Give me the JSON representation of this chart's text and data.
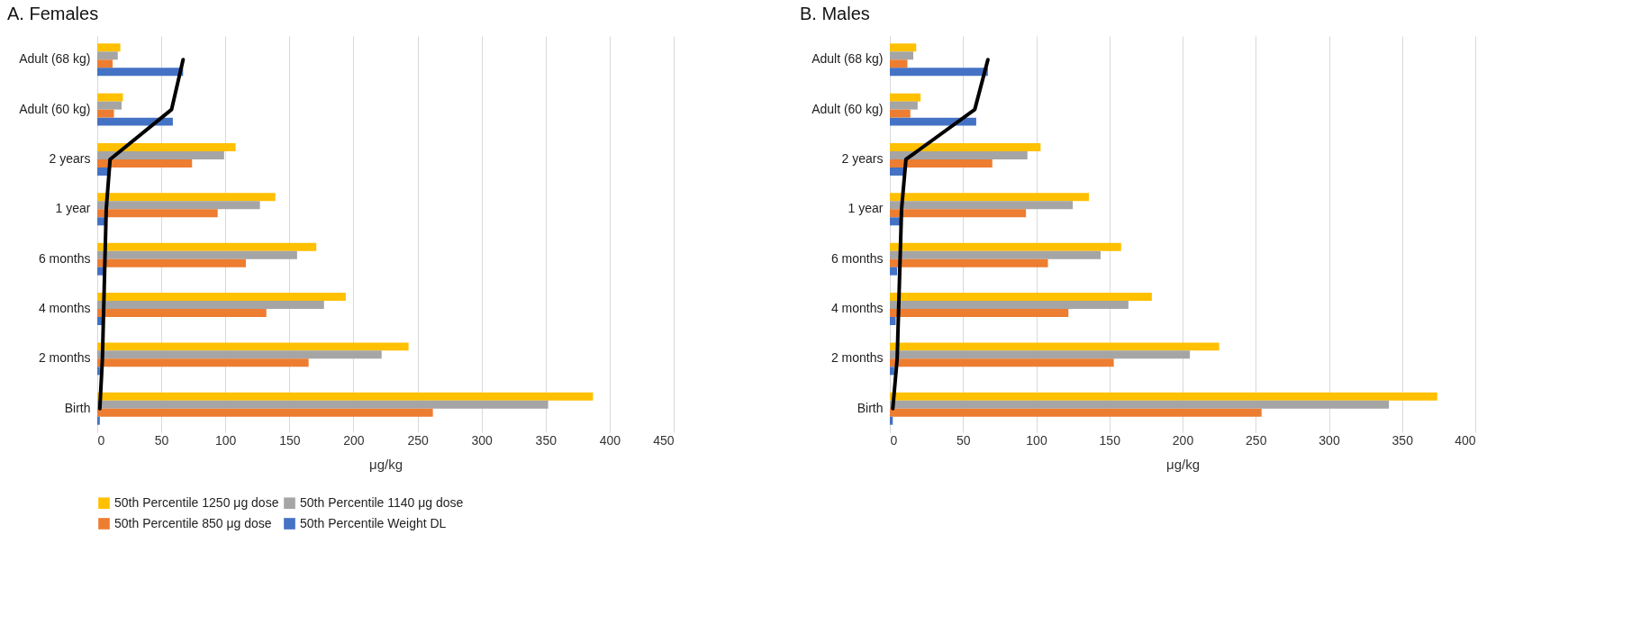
{
  "chart_data": [
    {
      "type": "bar",
      "orientation": "horizontal",
      "title": "A. Females",
      "xlabel": "μg/kg",
      "categories": [
        "Adult (68 kg)",
        "Adult (60 kg)",
        "2 years",
        "1 year",
        "6 months",
        "4 months",
        "2 months",
        "Birth"
      ],
      "xlim": [
        0,
        450
      ],
      "xticks": [
        0,
        50,
        100,
        150,
        200,
        250,
        300,
        350,
        400,
        450
      ],
      "grid": "x",
      "legend": "bottom",
      "series": [
        {
          "name": "50th Percentile 1250 μg dose",
          "color": "#ffc000",
          "values": [
            18,
            20,
            108,
            139,
            171,
            194,
            243,
            387
          ]
        },
        {
          "name": "50th Percentile 1140 μg dose",
          "color": "#a5a5a5",
          "values": [
            16,
            19,
            99,
            127,
            156,
            177,
            222,
            352
          ]
        },
        {
          "name": "50th Percentile 850 μg dose",
          "color": "#ed7d31",
          "values": [
            12,
            13,
            74,
            94,
            116,
            132,
            165,
            262
          ]
        },
        {
          "name": "50th Percentile Weight DL",
          "color": "#4472c4",
          "values": [
            67,
            59,
            9,
            6,
            5,
            4,
            2,
            2
          ]
        },
        {
          "type": "line",
          "color": "#000000",
          "values": [
            67,
            58,
            10,
            7,
            6,
            5,
            4,
            2
          ]
        }
      ]
    },
    {
      "type": "bar",
      "orientation": "horizontal",
      "title": "B. Males",
      "xlabel": "μg/kg",
      "categories": [
        "Adult (68 kg)",
        "Adult (60 kg)",
        "2 years",
        "1 year",
        "6 months",
        "4 months",
        "2 months",
        "Birth"
      ],
      "xlim": [
        0,
        400
      ],
      "xticks": [
        0,
        50,
        100,
        150,
        200,
        250,
        300,
        350,
        400
      ],
      "grid": "x",
      "series": [
        {
          "name": "50th Percentile 1250 μg dose",
          "color": "#ffc000",
          "values": [
            18,
            21,
            103,
            136,
            158,
            179,
            225,
            374
          ]
        },
        {
          "name": "50th Percentile 1140 μg dose",
          "color": "#a5a5a5",
          "values": [
            16,
            19,
            94,
            125,
            144,
            163,
            205,
            341
          ]
        },
        {
          "name": "50th Percentile 850 μg dose",
          "color": "#ed7d31",
          "values": [
            12,
            14,
            70,
            93,
            108,
            122,
            153,
            254
          ]
        },
        {
          "name": "50th Percentile Weight DL",
          "color": "#4472c4",
          "values": [
            67,
            59,
            11,
            7,
            5,
            4,
            3,
            2
          ]
        },
        {
          "type": "line",
          "color": "#000000",
          "values": [
            67,
            58,
            11,
            8,
            7,
            6,
            5,
            2
          ]
        }
      ]
    }
  ]
}
